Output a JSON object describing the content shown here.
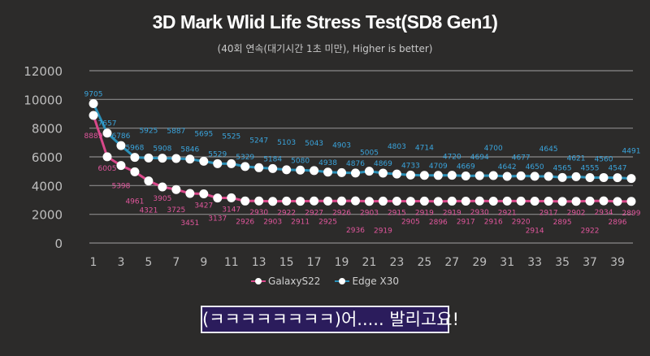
{
  "chart_data": {
    "type": "line",
    "title": "3D Mark Wlid Life Stress Test(SD8 Gen1)",
    "subtitle": "(40회 연속(대기시간 1초 미만), Higher is better)",
    "xlabel": "",
    "ylabel": "",
    "ylim": [
      0,
      12000
    ],
    "yticks": [
      0,
      2000,
      4000,
      6000,
      8000,
      10000,
      12000
    ],
    "xticks": [
      1,
      3,
      5,
      7,
      9,
      11,
      13,
      15,
      17,
      19,
      21,
      23,
      25,
      27,
      29,
      31,
      33,
      35,
      37,
      39
    ],
    "x": [
      1,
      2,
      3,
      4,
      5,
      6,
      7,
      8,
      9,
      10,
      11,
      12,
      13,
      14,
      15,
      16,
      17,
      18,
      19,
      20,
      21,
      22,
      23,
      24,
      25,
      26,
      27,
      28,
      29,
      30,
      31,
      32,
      33,
      34,
      35,
      36,
      37,
      38,
      39,
      40
    ],
    "grid": true,
    "legend_position": "bottom",
    "series": [
      {
        "name": "GalaxyS22",
        "color": "#d9488a",
        "label_color": "#e0569c",
        "values": [
          8889,
          6005,
          5398,
          4961,
          4321,
          3905,
          3725,
          3451,
          3427,
          3137,
          3147,
          2926,
          2930,
          2903,
          2922,
          2911,
          2927,
          2925,
          2926,
          2936,
          2903,
          2919,
          2915,
          2905,
          2919,
          2896,
          2919,
          2917,
          2930,
          2916,
          2921,
          2920,
          2914,
          2917,
          2895,
          2902,
          2922,
          2934,
          2896,
          2899
        ]
      },
      {
        "name": "Edge X30",
        "color": "#2b90b8",
        "label_color": "#3aa4dc",
        "values": [
          9705,
          7657,
          6786,
          5968,
          5925,
          5908,
          5887,
          5846,
          5695,
          5529,
          5525,
          5329,
          5247,
          5184,
          5103,
          5080,
          5043,
          4938,
          4903,
          4876,
          5005,
          4869,
          4803,
          4733,
          4714,
          4709,
          4720,
          4669,
          4694,
          4700,
          4642,
          4677,
          4650,
          4645,
          4565,
          4621,
          4555,
          4560,
          4547,
          4491
        ]
      }
    ]
  },
  "caption": "(ㅋㅋㅋㅋㅋㅋㅋㅋ)어..... 발리고요!"
}
